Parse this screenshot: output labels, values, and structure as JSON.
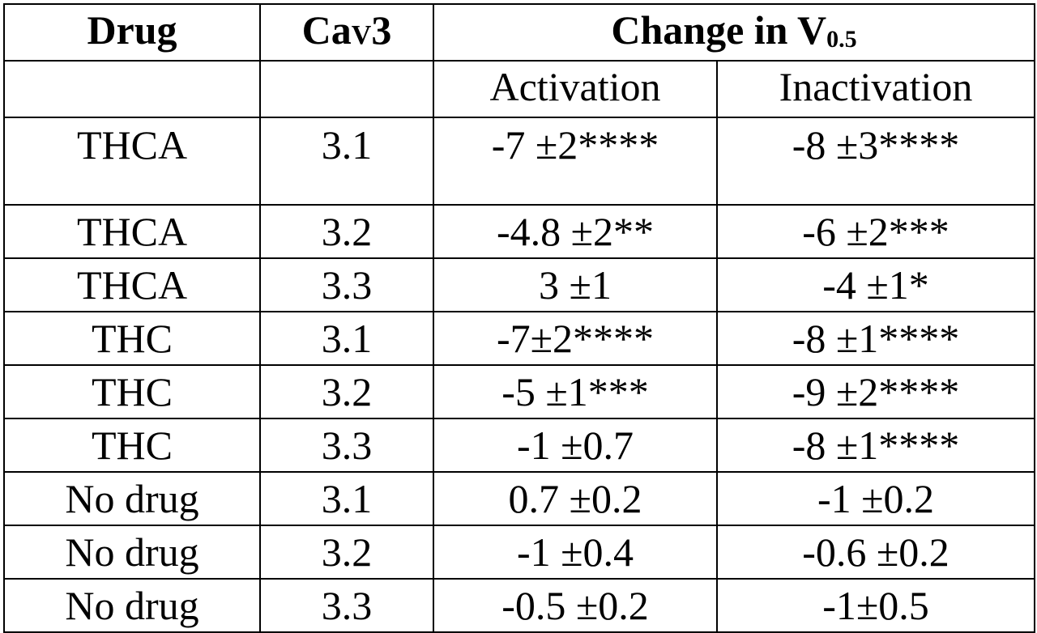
{
  "table": {
    "headers": {
      "drug": "Drug",
      "cav3_main": "Ca",
      "cav3_sub": "V",
      "cav3_tail": "3",
      "change_main": "Change in V",
      "change_sub": "0.5"
    },
    "subheaders": {
      "activation": "Activation",
      "inactivation": "Inactivation"
    },
    "rows": [
      {
        "drug": "THCA",
        "cav3": "3.1",
        "activation": "-7 ±2****",
        "inactivation": "-8 ±3****"
      },
      {
        "drug": "THCA",
        "cav3": "3.2",
        "activation": "-4.8 ±2**",
        "inactivation": "-6 ±2***"
      },
      {
        "drug": "THCA",
        "cav3": "3.3",
        "activation": "3 ±1",
        "inactivation": "-4 ±1*"
      },
      {
        "drug": "THC",
        "cav3": "3.1",
        "activation": "-7±2****",
        "inactivation": "-8 ±1****"
      },
      {
        "drug": "THC",
        "cav3": "3.2",
        "activation": "-5 ±1***",
        "inactivation": "-9 ±2****"
      },
      {
        "drug": "THC",
        "cav3": "3.3",
        "activation": "-1 ±0.7",
        "inactivation": "-8 ±1****"
      },
      {
        "drug": "No drug",
        "cav3": "3.1",
        "activation": "0.7 ±0.2",
        "inactivation": "-1 ±0.2"
      },
      {
        "drug": "No drug",
        "cav3": "3.2",
        "activation": "-1 ±0.4",
        "inactivation": "-0.6 ±0.2"
      },
      {
        "drug": "No drug",
        "cav3": "3.3",
        "activation": "-0.5 ±0.2",
        "inactivation": "-1±0.5"
      }
    ]
  }
}
